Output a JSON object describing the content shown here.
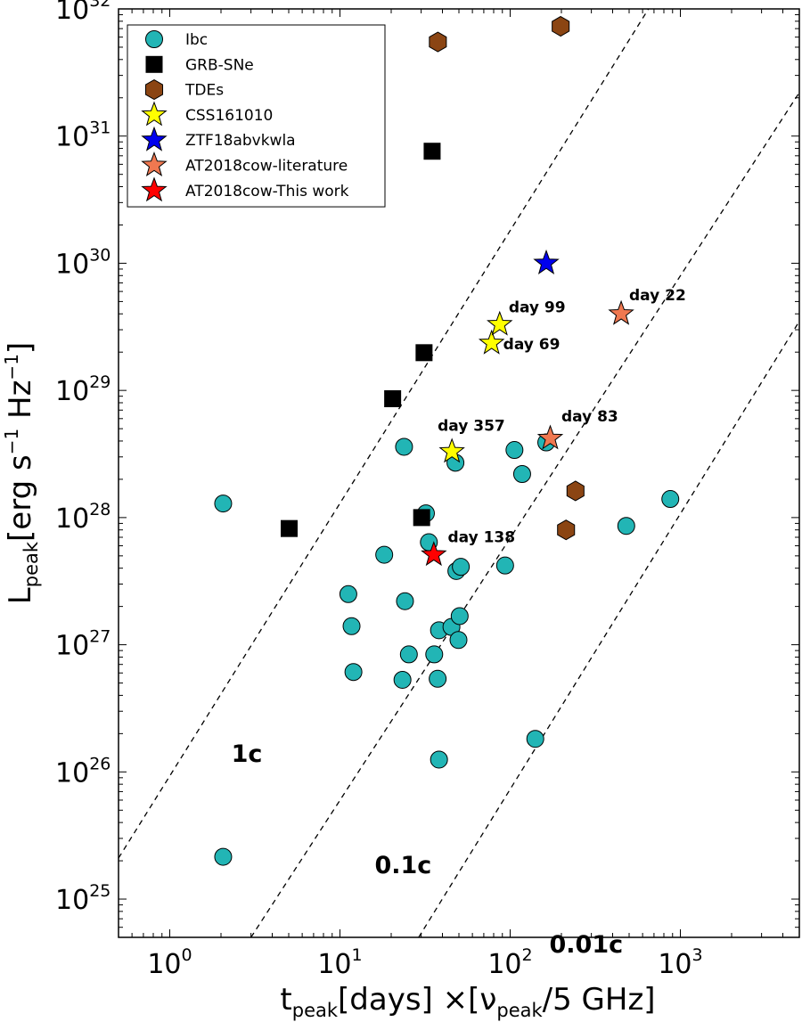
{
  "chart_data": {
    "type": "scatter",
    "x_scale": "log",
    "y_scale": "log",
    "xlim": [
      0.5,
      5000
    ],
    "ylim": [
      5e+24,
      1e+32
    ],
    "xlabel": {
      "base": "t",
      "sub": "peak",
      "mid": "[days]  ×[",
      "nu": "ν",
      "nu_sub": "peak",
      "end": "/5 GHz]"
    },
    "ylabel": {
      "base": "L",
      "sub": "peak",
      "text1": "[erg s",
      "sup1": "−1",
      "text2": " Hz",
      "sup2": "−1",
      "text3": "]"
    },
    "x_ticks": [
      {
        "value": 1,
        "base": "10",
        "exp": "0"
      },
      {
        "value": 10,
        "base": "10",
        "exp": "1"
      },
      {
        "value": 100,
        "base": "10",
        "exp": "2"
      },
      {
        "value": 1000,
        "base": "10",
        "exp": "3"
      }
    ],
    "y_ticks": [
      {
        "value": 1e+25,
        "base": "10",
        "exp": "25"
      },
      {
        "value": 1e+26,
        "base": "10",
        "exp": "26"
      },
      {
        "value": 1e+27,
        "base": "10",
        "exp": "27"
      },
      {
        "value": 1e+28,
        "base": "10",
        "exp": "28"
      },
      {
        "value": 1e+29,
        "base": "10",
        "exp": "29"
      },
      {
        "value": 1e+30,
        "base": "10",
        "exp": "30"
      },
      {
        "value": 1e+31,
        "base": "10",
        "exp": "31"
      },
      {
        "value": 1e+32,
        "base": "10",
        "exp": "32"
      }
    ],
    "reference_lines": [
      {
        "label": "1c",
        "points": [
          [
            0.5,
            2.1e+25
          ],
          [
            650,
            1e+32
          ]
        ],
        "label_at": [
          2.3,
          1.2e+26
        ]
      },
      {
        "label": "0.1c",
        "points": [
          [
            3,
            5e+24
          ],
          [
            5000,
            2.2e+31
          ]
        ],
        "label_at": [
          16,
          1.6e+25
        ]
      },
      {
        "label": "0.01c",
        "points": [
          [
            29,
            5e+24
          ],
          [
            5000,
            3.5e+29
          ]
        ],
        "label_at": [
          170,
          3.8e+24
        ]
      }
    ],
    "series": [
      {
        "name": "Ibc",
        "marker": "circle",
        "color": "#22b5b5",
        "points": [
          [
            2.06,
            1.29e+28
          ],
          [
            2.06,
            2.15e+25
          ],
          [
            11.2,
            2.5e+27
          ],
          [
            11.7,
            1.4e+27
          ],
          [
            12,
            6.1e+26
          ],
          [
            18.2,
            5.1e+27
          ],
          [
            23.3,
            5.3e+26
          ],
          [
            23.8,
            3.6e+28
          ],
          [
            24.1,
            2.2e+27
          ],
          [
            25.4,
            8.4e+26
          ],
          [
            32,
            1.08e+28
          ],
          [
            33.3,
            6.4e+27
          ],
          [
            35.8,
            8.4e+26
          ],
          [
            37.5,
            5.4e+26
          ],
          [
            38.2,
            1.3e+27
          ],
          [
            38.2,
            1.25e+26
          ],
          [
            45.2,
            1.38e+27
          ],
          [
            47.7,
            2.7e+28
          ],
          [
            48.3,
            3.8e+27
          ],
          [
            49.7,
            1.09e+27
          ],
          [
            50.5,
            1.68e+27
          ],
          [
            51.3,
            4.1e+27
          ],
          [
            93.4,
            4.2e+27
          ],
          [
            106,
            3.4e+28
          ],
          [
            117.6,
            2.2e+28
          ],
          [
            140.5,
            1.82e+26
          ],
          [
            163,
            3.9e+28
          ],
          [
            481,
            8.6e+27
          ],
          [
            873,
            1.4e+28
          ]
        ]
      },
      {
        "name": "GRB-SNe",
        "marker": "square",
        "color": "#000000",
        "points": [
          [
            5.03,
            8.2e+27
          ],
          [
            20.4,
            8.6e+28
          ],
          [
            30.2,
            1e+28
          ],
          [
            31.2,
            1.98e+29
          ],
          [
            34.8,
            7.6e+30
          ]
        ]
      },
      {
        "name": "TDEs",
        "marker": "hexagon",
        "color": "#8b4513",
        "points": [
          [
            37.6,
            5.5e+31
          ],
          [
            198,
            7.3e+31
          ],
          [
            213,
            8e+27
          ],
          [
            242,
            1.62e+28
          ]
        ]
      },
      {
        "name": "CSS161010",
        "marker": "star",
        "color": "#ffff00",
        "points": [
          [
            45.5,
            3.3e+28
          ],
          [
            77.8,
            2.35e+29
          ],
          [
            86.8,
            3.3e+29
          ]
        ]
      },
      {
        "name": "ZTF18abvkwla",
        "marker": "star",
        "color": "#0000ee",
        "points": [
          [
            163,
            1e+30
          ]
        ]
      },
      {
        "name": "AT2018cow-literature",
        "marker": "star",
        "color": "#f07850",
        "points": [
          [
            172,
            4.2e+28
          ],
          [
            449,
            4e+29
          ]
        ]
      },
      {
        "name": "AT2018cow-This work",
        "marker": "star",
        "color": "#ff0000",
        "points": [
          [
            35.6,
            5.1e+27
          ]
        ]
      }
    ],
    "annotations": [
      {
        "text": "day 99",
        "at": [
          98,
          4.1e+29
        ]
      },
      {
        "text": "day 69",
        "at": [
          91,
          2.1e+29
        ]
      },
      {
        "text": "day 22",
        "at": [
          500,
          5.1e+29
        ]
      },
      {
        "text": "day 357",
        "at": [
          37.5,
          4.8e+28
        ]
      },
      {
        "text": "day 83",
        "at": [
          200,
          5.7e+28
        ]
      },
      {
        "text": "day 138",
        "at": [
          43,
          6.4e+27
        ]
      }
    ],
    "legend": {
      "placement": "top-left",
      "entries": [
        {
          "label": "Ibc",
          "marker": "circle",
          "color": "#22b5b5"
        },
        {
          "label": "GRB-SNe",
          "marker": "square",
          "color": "#000000"
        },
        {
          "label": "TDEs",
          "marker": "hexagon",
          "color": "#8b4513"
        },
        {
          "label": "CSS161010",
          "marker": "star",
          "color": "#ffff00"
        },
        {
          "label": "ZTF18abvkwla",
          "marker": "star",
          "color": "#0000ee"
        },
        {
          "label": "AT2018cow-literature",
          "marker": "star",
          "color": "#f07850"
        },
        {
          "label": "AT2018cow-This work",
          "marker": "star",
          "color": "#ff0000"
        }
      ]
    }
  }
}
